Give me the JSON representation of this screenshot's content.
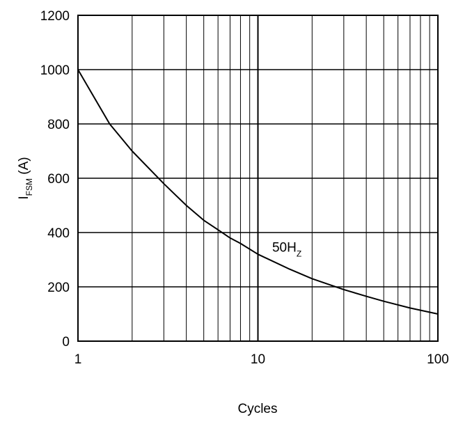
{
  "chart_data": {
    "type": "line",
    "title": "",
    "xlabel": "Cycles",
    "ylabel_main": "I",
    "ylabel_sub": "FSM",
    "ylabel_unit": " (A)",
    "x_scale": "log",
    "xlim": [
      1,
      100
    ],
    "ylim": [
      0,
      1200
    ],
    "x_ticks": [
      1,
      10,
      100
    ],
    "x_tick_labels": [
      "1",
      "10",
      "100"
    ],
    "y_ticks": [
      0,
      200,
      400,
      600,
      800,
      1000,
      1200
    ],
    "y_tick_labels": [
      "0",
      "200",
      "400",
      "600",
      "800",
      "1000",
      "1200"
    ],
    "grid": true,
    "legend": "none",
    "series": [
      {
        "color": "#000000",
        "x": [
          1,
          1.5,
          2,
          3,
          4,
          5,
          6,
          7,
          8,
          10,
          15,
          20,
          30,
          40,
          50,
          70,
          100
        ],
        "y": [
          1000,
          800,
          700,
          580,
          500,
          445,
          410,
          380,
          360,
          320,
          265,
          230,
          190,
          165,
          147,
          122,
          100
        ]
      }
    ],
    "annotation": {
      "main": "50H",
      "sub": "Z",
      "x": 12,
      "y": 330
    }
  }
}
